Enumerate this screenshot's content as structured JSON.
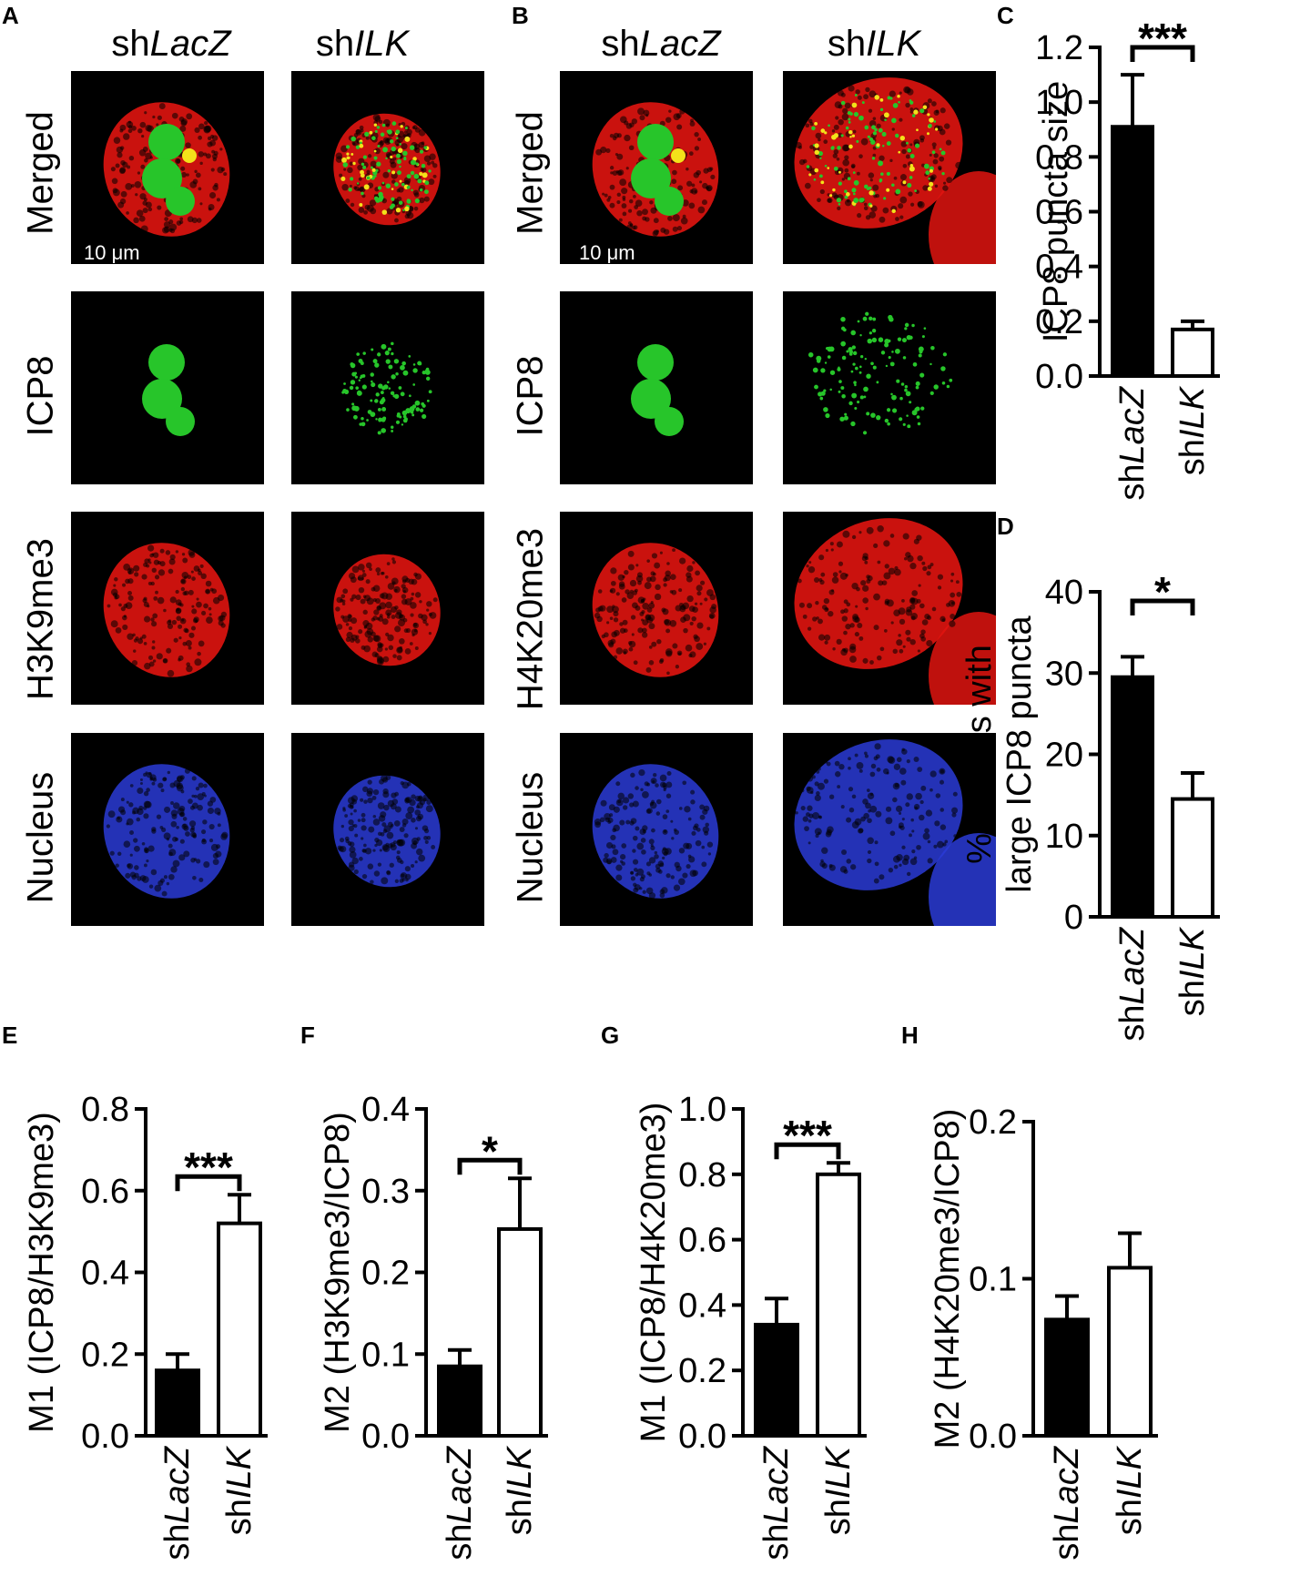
{
  "panels": {
    "A": {
      "letter": "A",
      "col_heads": [
        {
          "prefix": "sh",
          "gene": "LacZ"
        },
        {
          "prefix": "sh",
          "gene": "ILK"
        }
      ],
      "rows": [
        "Merged",
        "ICP8",
        "H3K9me3",
        "Nucleus"
      ],
      "scale_label": "10 μm"
    },
    "B": {
      "letter": "B",
      "col_heads": [
        {
          "prefix": "sh",
          "gene": "LacZ"
        },
        {
          "prefix": "sh",
          "gene": "ILK"
        }
      ],
      "rows": [
        "Merged",
        "ICP8",
        "H4K20me3",
        "Nucleus"
      ],
      "scale_label": "10 μm"
    }
  },
  "colors": {
    "merged_red": "#e0140f",
    "icp8_green": "#27c52a",
    "nucleus_blue": "#2a3bd6",
    "yellow": "#f3e21a"
  },
  "chart_data": [
    {
      "panel": "C",
      "type": "bar",
      "categories": [
        {
          "prefix": "sh",
          "gene": "LacZ"
        },
        {
          "prefix": "sh",
          "gene": "ILK"
        }
      ],
      "values": [
        0.91,
        0.17
      ],
      "errors": [
        0.19,
        0.03
      ],
      "fills": [
        "#000000",
        "#ffffff"
      ],
      "ylabel": [
        "ICP8 puncta size"
      ],
      "ylim": [
        0,
        1.2
      ],
      "ticks": [
        "0.0",
        "0.2",
        "0.4",
        "0.6",
        "0.8",
        "1.0",
        "1.2"
      ],
      "significance": "***"
    },
    {
      "panel": "D",
      "type": "bar",
      "categories": [
        {
          "prefix": "sh",
          "gene": "LacZ"
        },
        {
          "prefix": "sh",
          "gene": "ILK"
        }
      ],
      "values": [
        29.5,
        14.5
      ],
      "errors": [
        2.5,
        3.2
      ],
      "fills": [
        "#000000",
        "#ffffff"
      ],
      "ylabel": [
        "% of cells with",
        "large ICP8 puncta"
      ],
      "ylim": [
        0,
        40
      ],
      "ticks": [
        "0",
        "10",
        "20",
        "30",
        "40"
      ],
      "significance": "*"
    },
    {
      "panel": "E",
      "type": "bar",
      "categories": [
        {
          "prefix": "sh",
          "gene": "LacZ"
        },
        {
          "prefix": "sh",
          "gene": "ILK"
        }
      ],
      "values": [
        0.16,
        0.52
      ],
      "errors": [
        0.04,
        0.07
      ],
      "fills": [
        "#000000",
        "#ffffff"
      ],
      "ylabel": [
        "M1 (ICP8/H3K9me3)"
      ],
      "ylim": [
        0,
        0.8
      ],
      "ticks": [
        "0.0",
        "0.2",
        "0.4",
        "0.6",
        "0.8"
      ],
      "significance": "***"
    },
    {
      "panel": "F",
      "type": "bar",
      "categories": [
        {
          "prefix": "sh",
          "gene": "LacZ"
        },
        {
          "prefix": "sh",
          "gene": "ILK"
        }
      ],
      "values": [
        0.085,
        0.253
      ],
      "errors": [
        0.02,
        0.062
      ],
      "fills": [
        "#000000",
        "#ffffff"
      ],
      "ylabel": [
        "M2 (H3K9me3/ICP8)"
      ],
      "ylim": [
        0,
        0.4
      ],
      "ticks": [
        "0.0",
        "0.1",
        "0.2",
        "0.3",
        "0.4"
      ],
      "significance": "*"
    },
    {
      "panel": "G",
      "type": "bar",
      "categories": [
        {
          "prefix": "sh",
          "gene": "LacZ"
        },
        {
          "prefix": "sh",
          "gene": "ILK"
        }
      ],
      "values": [
        0.34,
        0.8
      ],
      "errors": [
        0.08,
        0.035
      ],
      "fills": [
        "#000000",
        "#ffffff"
      ],
      "ylabel": [
        "M1 (ICP8/H4K20me3)"
      ],
      "ylim": [
        0,
        1.0
      ],
      "ticks": [
        "0.0",
        "0.2",
        "0.4",
        "0.6",
        "0.8",
        "1.0"
      ],
      "significance": "***"
    },
    {
      "panel": "H",
      "type": "bar",
      "categories": [
        {
          "prefix": "sh",
          "gene": "LacZ"
        },
        {
          "prefix": "sh",
          "gene": "ILK"
        }
      ],
      "values": [
        0.074,
        0.107
      ],
      "errors": [
        0.015,
        0.022
      ],
      "fills": [
        "#000000",
        "#ffffff"
      ],
      "ylabel": [
        "M2 (H4K20me3/ICP8)"
      ],
      "ylim": [
        0,
        0.2
      ],
      "ticks": [
        "0.0",
        "0.1",
        "0.2"
      ],
      "significance": ""
    }
  ]
}
